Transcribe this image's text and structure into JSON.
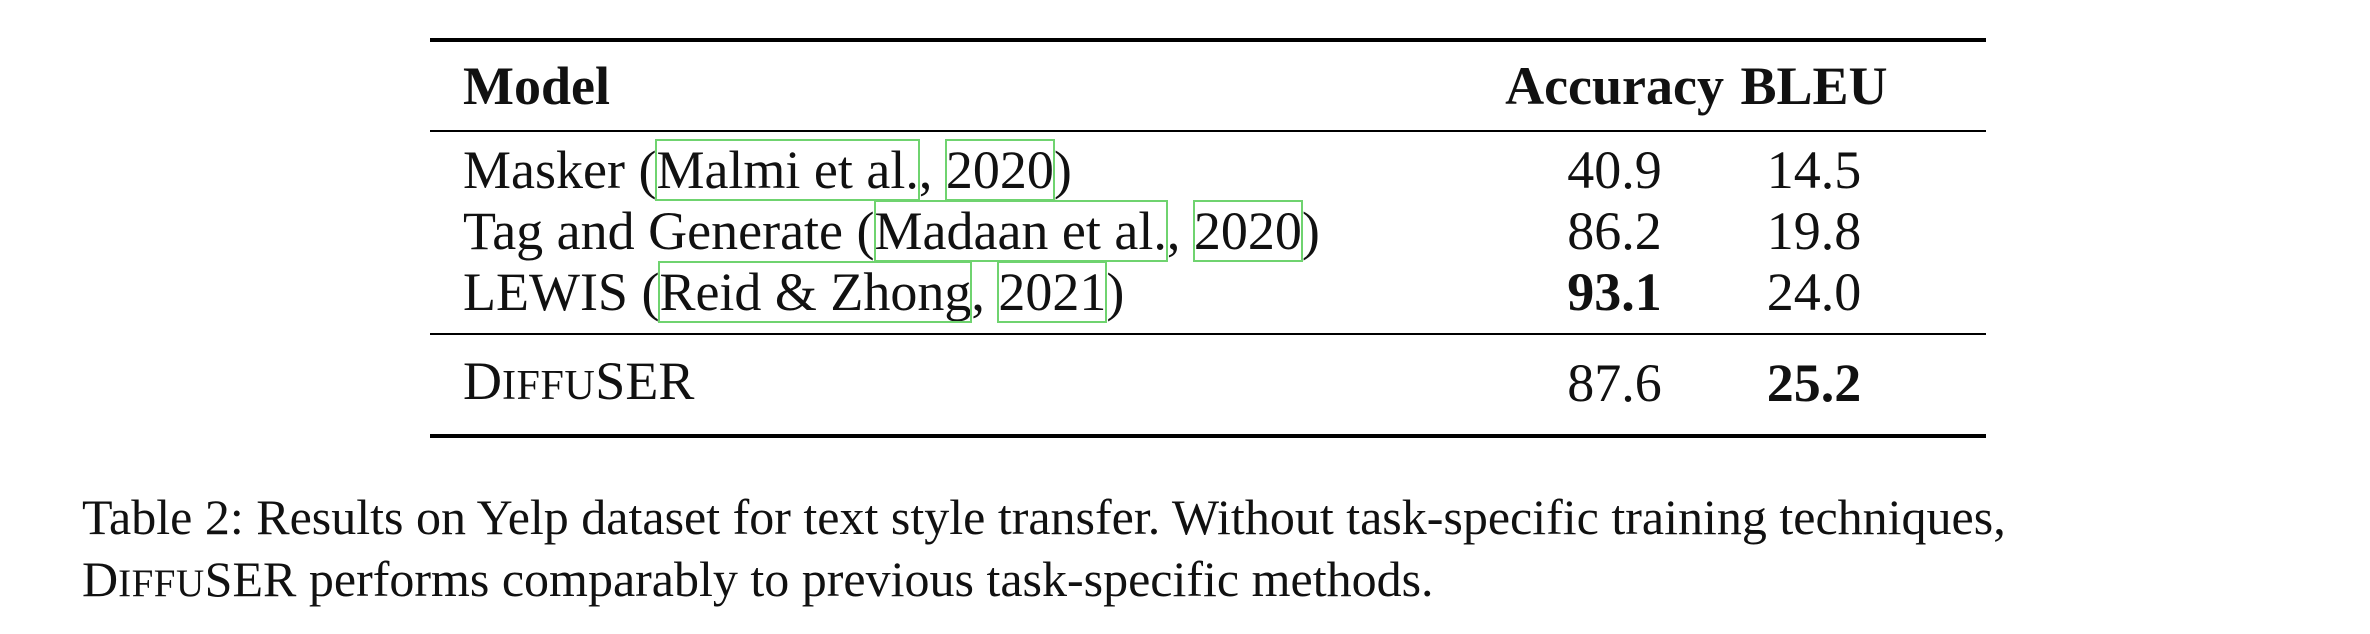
{
  "table": {
    "headers": [
      "Model",
      "Accuracy",
      "BLEU"
    ],
    "baseline_rows": [
      {
        "model": "Masker",
        "cite_author": "Malmi et al.",
        "cite_year": "2020",
        "accuracy": "40.9",
        "bleu": "14.5"
      },
      {
        "model": "Tag and Generate",
        "cite_author": "Madaan et al.",
        "cite_year": "2020",
        "accuracy": "86.2",
        "bleu": "19.8"
      },
      {
        "model": "LEWIS",
        "cite_author": "Reid & Zhong",
        "cite_year": "2021",
        "accuracy": "93.1",
        "bleu": "24.0"
      }
    ],
    "ours_row": {
      "model_first": "D",
      "model_small1": "IFFU",
      "model_mid": "S",
      "model_rest": "ER",
      "accuracy": "87.6",
      "bleu": "25.2"
    }
  },
  "caption": {
    "label": "Table 2:",
    "text_line1": " Results on Yelp dataset for text style transfer.  Without task-specific training techniques,",
    "name_first": "D",
    "name_small1": "IFFU",
    "name_mid": "S",
    "name_rest": "ER",
    "text_line2": " performs comparably to previous task-specific methods."
  }
}
